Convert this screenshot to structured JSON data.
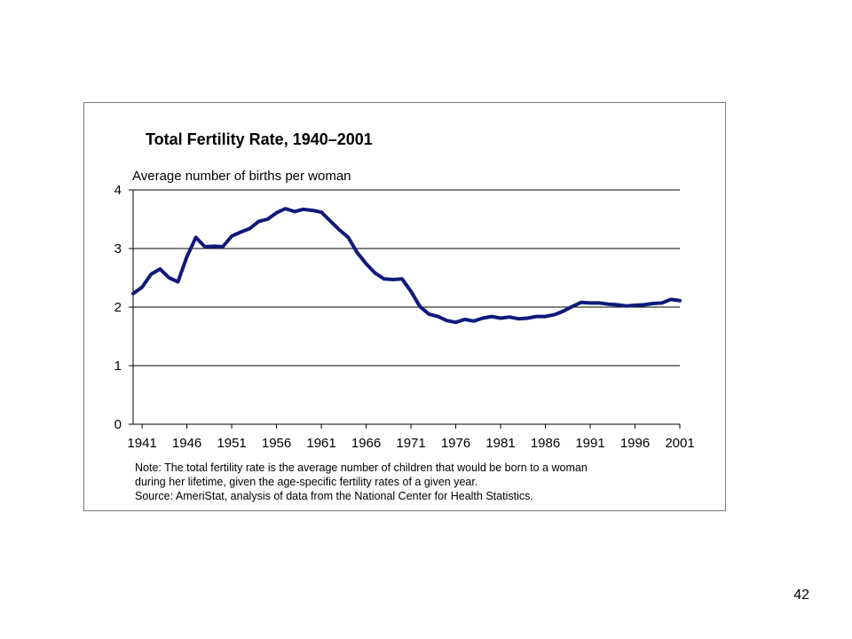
{
  "slide": {
    "page_number": "42",
    "notes": [
      "Note: The total fertility rate is the average number of children that would be born to a woman",
      "during her lifetime, given the age-specific fertility rates of a given year.",
      "Source: AmeriStat, analysis of data from the National Center for Health Statistics."
    ]
  },
  "chart_data": {
    "type": "line",
    "title": "Total Fertility Rate, 1940–2001",
    "ylabel": "Average number of births per woman",
    "xlabel": "",
    "xlim": [
      1940,
      2001
    ],
    "ylim": [
      0,
      4
    ],
    "x_ticks": [
      "1941",
      "1946",
      "1951",
      "1956",
      "1961",
      "1966",
      "1971",
      "1976",
      "1981",
      "1986",
      "1991",
      "1996",
      "2001"
    ],
    "y_ticks": [
      "0",
      "1",
      "2",
      "3",
      "4"
    ],
    "grid": "horizontal",
    "legend": "none",
    "series_color": "#0f1a7a",
    "x": [
      1940,
      1941,
      1942,
      1943,
      1944,
      1945,
      1946,
      1947,
      1948,
      1949,
      1950,
      1951,
      1952,
      1953,
      1954,
      1955,
      1956,
      1957,
      1958,
      1959,
      1960,
      1961,
      1962,
      1963,
      1964,
      1965,
      1966,
      1967,
      1968,
      1969,
      1970,
      1971,
      1972,
      1973,
      1974,
      1975,
      1976,
      1977,
      1978,
      1979,
      1980,
      1981,
      1982,
      1983,
      1984,
      1985,
      1986,
      1987,
      1988,
      1989,
      1990,
      1991,
      1992,
      1993,
      1994,
      1995,
      1996,
      1997,
      1998,
      1999,
      2000,
      2001
    ],
    "series": [
      {
        "values": [
          2.23,
          2.34,
          2.56,
          2.65,
          2.5,
          2.43,
          2.86,
          3.19,
          3.03,
          3.04,
          3.03,
          3.21,
          3.28,
          3.34,
          3.46,
          3.5,
          3.61,
          3.68,
          3.63,
          3.67,
          3.65,
          3.62,
          3.47,
          3.32,
          3.19,
          2.93,
          2.74,
          2.58,
          2.48,
          2.47,
          2.48,
          2.27,
          2.01,
          1.88,
          1.84,
          1.77,
          1.74,
          1.79,
          1.76,
          1.81,
          1.84,
          1.81,
          1.83,
          1.8,
          1.81,
          1.84,
          1.84,
          1.87,
          1.93,
          2.01,
          2.08,
          2.07,
          2.07,
          2.05,
          2.04,
          2.02,
          2.03,
          2.04,
          2.06,
          2.07,
          2.13,
          2.11
        ]
      }
    ]
  }
}
